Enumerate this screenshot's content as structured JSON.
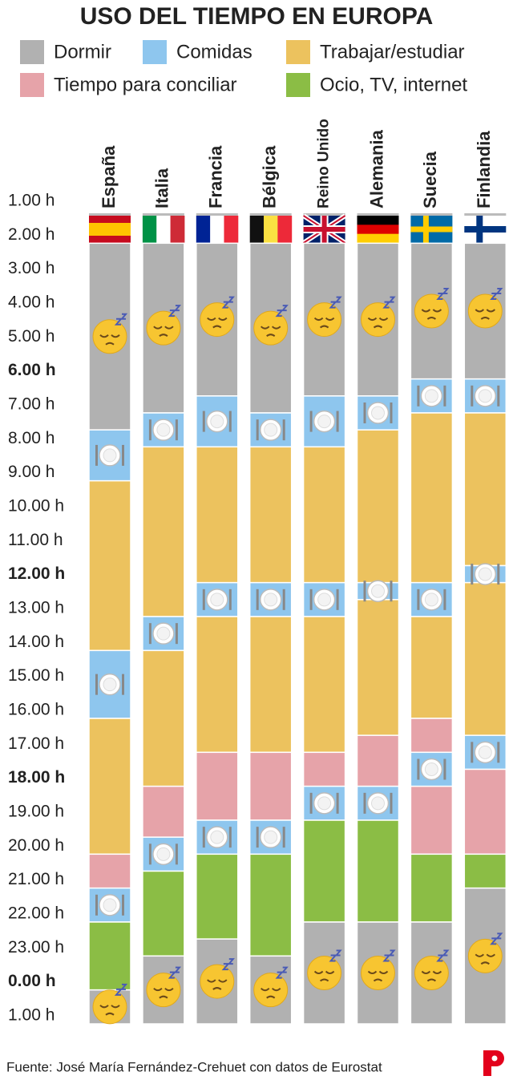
{
  "chart_data": {
    "type": "timeline",
    "title": "USO DEL TIEMPO EN EUROPA",
    "series": [
      {
        "name": "Dormir",
        "color": "#b1b1b1"
      },
      {
        "name": "Comidas",
        "color": "#8ec6ee"
      },
      {
        "name": "Trabajar/estudiar",
        "color": "#ecc25e"
      },
      {
        "name": "Tiempo para conciliar",
        "color": "#e6a3a9"
      },
      {
        "name": "Ocio, TV, internet",
        "color": "#8bbd45"
      }
    ],
    "ylim": [
      1,
      25
    ],
    "yticks": [
      {
        "value": 1,
        "label": "1.00 h"
      },
      {
        "value": 2,
        "label": "2.00 h"
      },
      {
        "value": 3,
        "label": "3.00 h"
      },
      {
        "value": 4,
        "label": "4.00 h"
      },
      {
        "value": 5,
        "label": "5.00 h"
      },
      {
        "value": 6,
        "label": "6.00 h"
      },
      {
        "value": 7,
        "label": "7.00 h"
      },
      {
        "value": 8,
        "label": "8.00 h"
      },
      {
        "value": 9,
        "label": "9.00 h"
      },
      {
        "value": 10,
        "label": "10.00 h"
      },
      {
        "value": 11,
        "label": "11.00 h"
      },
      {
        "value": 12,
        "label": "12.00 h"
      },
      {
        "value": 13,
        "label": "13.00 h"
      },
      {
        "value": 14,
        "label": "14.00 h"
      },
      {
        "value": 15,
        "label": "15.00 h"
      },
      {
        "value": 16,
        "label": "16.00 h"
      },
      {
        "value": 17,
        "label": "17.00 h"
      },
      {
        "value": 18,
        "label": "18.00 h"
      },
      {
        "value": 19,
        "label": "19.00 h"
      },
      {
        "value": 20,
        "label": "20.00 h"
      },
      {
        "value": 21,
        "label": "21.00 h"
      },
      {
        "value": 22,
        "label": "22.00 h"
      },
      {
        "value": 23,
        "label": "23.00 h"
      },
      {
        "value": 24,
        "label": "0.00 h"
      },
      {
        "value": 25,
        "label": "1.00 h"
      }
    ],
    "countries": [
      {
        "name": "España",
        "segments": [
          {
            "series": 0,
            "start": 2,
            "end": 7.5
          },
          {
            "series": 1,
            "start": 7.5,
            "end": 9
          },
          {
            "series": 2,
            "start": 9,
            "end": 14
          },
          {
            "series": 1,
            "start": 14,
            "end": 16
          },
          {
            "series": 2,
            "start": 16,
            "end": 20
          },
          {
            "series": 3,
            "start": 20,
            "end": 21
          },
          {
            "series": 1,
            "start": 21,
            "end": 22
          },
          {
            "series": 4,
            "start": 22,
            "end": 24
          },
          {
            "series": 0,
            "start": 24,
            "end": 25
          }
        ]
      },
      {
        "name": "Italia",
        "segments": [
          {
            "series": 0,
            "start": 2,
            "end": 7
          },
          {
            "series": 1,
            "start": 7,
            "end": 8
          },
          {
            "series": 2,
            "start": 8,
            "end": 13
          },
          {
            "series": 1,
            "start": 13,
            "end": 14
          },
          {
            "series": 2,
            "start": 14,
            "end": 18
          },
          {
            "series": 3,
            "start": 18,
            "end": 19.5
          },
          {
            "series": 1,
            "start": 19.5,
            "end": 20.5
          },
          {
            "series": 4,
            "start": 20.5,
            "end": 23
          },
          {
            "series": 0,
            "start": 23,
            "end": 25
          }
        ]
      },
      {
        "name": "Francia",
        "segments": [
          {
            "series": 0,
            "start": 2,
            "end": 6.5
          },
          {
            "series": 1,
            "start": 6.5,
            "end": 8
          },
          {
            "series": 2,
            "start": 8,
            "end": 12
          },
          {
            "series": 1,
            "start": 12,
            "end": 13
          },
          {
            "series": 2,
            "start": 13,
            "end": 17
          },
          {
            "series": 3,
            "start": 17,
            "end": 19
          },
          {
            "series": 1,
            "start": 19,
            "end": 20
          },
          {
            "series": 4,
            "start": 20,
            "end": 22.5
          },
          {
            "series": 0,
            "start": 22.5,
            "end": 25
          }
        ]
      },
      {
        "name": "Bélgica",
        "segments": [
          {
            "series": 0,
            "start": 2,
            "end": 7
          },
          {
            "series": 1,
            "start": 7,
            "end": 8
          },
          {
            "series": 2,
            "start": 8,
            "end": 12
          },
          {
            "series": 1,
            "start": 12,
            "end": 13
          },
          {
            "series": 2,
            "start": 13,
            "end": 17
          },
          {
            "series": 3,
            "start": 17,
            "end": 19
          },
          {
            "series": 1,
            "start": 19,
            "end": 20
          },
          {
            "series": 4,
            "start": 20,
            "end": 23
          },
          {
            "series": 0,
            "start": 23,
            "end": 25
          }
        ]
      },
      {
        "name": "Reino Unido",
        "segments": [
          {
            "series": 0,
            "start": 2,
            "end": 6.5
          },
          {
            "series": 1,
            "start": 6.5,
            "end": 8
          },
          {
            "series": 2,
            "start": 8,
            "end": 12
          },
          {
            "series": 1,
            "start": 12,
            "end": 13
          },
          {
            "series": 2,
            "start": 13,
            "end": 17
          },
          {
            "series": 3,
            "start": 17,
            "end": 18
          },
          {
            "series": 1,
            "start": 18,
            "end": 19
          },
          {
            "series": 4,
            "start": 19,
            "end": 22
          },
          {
            "series": 0,
            "start": 22,
            "end": 25
          }
        ]
      },
      {
        "name": "Alemania",
        "segments": [
          {
            "series": 0,
            "start": 2,
            "end": 6.5
          },
          {
            "series": 1,
            "start": 6.5,
            "end": 7.5
          },
          {
            "series": 2,
            "start": 7.5,
            "end": 12
          },
          {
            "series": 1,
            "start": 12,
            "end": 12.5
          },
          {
            "series": 2,
            "start": 12.5,
            "end": 16.5
          },
          {
            "series": 3,
            "start": 16.5,
            "end": 18
          },
          {
            "series": 1,
            "start": 18,
            "end": 19
          },
          {
            "series": 4,
            "start": 19,
            "end": 22
          },
          {
            "series": 0,
            "start": 22,
            "end": 25
          }
        ]
      },
      {
        "name": "Suecia",
        "segments": [
          {
            "series": 0,
            "start": 2,
            "end": 6
          },
          {
            "series": 1,
            "start": 6,
            "end": 7
          },
          {
            "series": 2,
            "start": 7,
            "end": 12
          },
          {
            "series": 1,
            "start": 12,
            "end": 13
          },
          {
            "series": 2,
            "start": 13,
            "end": 16
          },
          {
            "series": 3,
            "start": 16,
            "end": 17
          },
          {
            "series": 1,
            "start": 17,
            "end": 18
          },
          {
            "series": 3,
            "start": 18,
            "end": 20
          },
          {
            "series": 4,
            "start": 20,
            "end": 22
          },
          {
            "series": 0,
            "start": 22,
            "end": 25
          }
        ]
      },
      {
        "name": "Finlandia",
        "segments": [
          {
            "series": 0,
            "start": 2,
            "end": 6
          },
          {
            "series": 1,
            "start": 6,
            "end": 7
          },
          {
            "series": 2,
            "start": 7,
            "end": 11.5
          },
          {
            "series": 1,
            "start": 11.5,
            "end": 12
          },
          {
            "series": 2,
            "start": 12,
            "end": 16.5
          },
          {
            "series": 1,
            "start": 16.5,
            "end": 17.5
          },
          {
            "series": 3,
            "start": 17.5,
            "end": 20
          },
          {
            "series": 4,
            "start": 20,
            "end": 21
          },
          {
            "series": 0,
            "start": 21,
            "end": 25
          }
        ]
      }
    ]
  },
  "source": "Fuente: José María Fernández-Crehuet con datos de Eurostat"
}
